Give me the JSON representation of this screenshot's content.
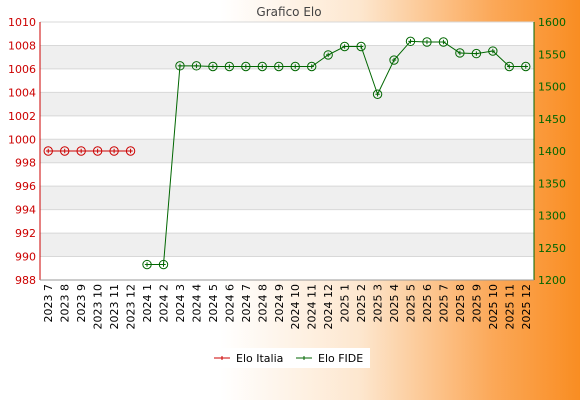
{
  "chart_data": {
    "type": "line",
    "title": "Grafico Elo",
    "categories": [
      "2023 7",
      "2023 8",
      "2023 9",
      "2023 10",
      "2023 11",
      "2023 12",
      "2024 1",
      "2024 2",
      "2024 3",
      "2024 4",
      "2024 5",
      "2024 6",
      "2024 7",
      "2024 8",
      "2024 9",
      "2024 10",
      "2024 11",
      "2024 12",
      "2025 1",
      "2025 2",
      "2025 3",
      "2025 4",
      "2025 5",
      "2025 6",
      "2025 7",
      "2025 8",
      "2025 9",
      "2025 10",
      "2025 11",
      "2025 12"
    ],
    "y_left": {
      "ylim": [
        988,
        1010
      ],
      "ticks": [
        988,
        990,
        992,
        994,
        996,
        998,
        1000,
        1002,
        1004,
        1006,
        1008,
        1010
      ],
      "color": "#cc0000"
    },
    "y_right": {
      "ylim": [
        1200,
        1600
      ],
      "ticks": [
        1200,
        1250,
        1300,
        1350,
        1400,
        1450,
        1500,
        1550,
        1600
      ],
      "color": "#006600"
    },
    "series": [
      {
        "name": "Elo Italia",
        "axis": "left",
        "color": "#cc0000",
        "values": [
          999,
          999,
          999,
          999,
          999,
          999,
          null,
          null,
          null,
          null,
          null,
          null,
          null,
          null,
          null,
          null,
          null,
          null,
          null,
          null,
          null,
          null,
          null,
          null,
          null,
          null,
          null,
          null,
          null,
          null
        ]
      },
      {
        "name": "Elo FIDE",
        "axis": "right",
        "color": "#006600",
        "values": [
          null,
          null,
          null,
          null,
          null,
          null,
          1224,
          1224,
          1532,
          1532,
          1531,
          1531,
          1531,
          1531,
          1531,
          1531,
          1531,
          1549,
          1562,
          1562,
          1488,
          1541,
          1570,
          1569,
          1569,
          1552,
          1551,
          1555,
          1531,
          1531
        ]
      }
    ],
    "grid": true,
    "legend_position": "bottom"
  }
}
